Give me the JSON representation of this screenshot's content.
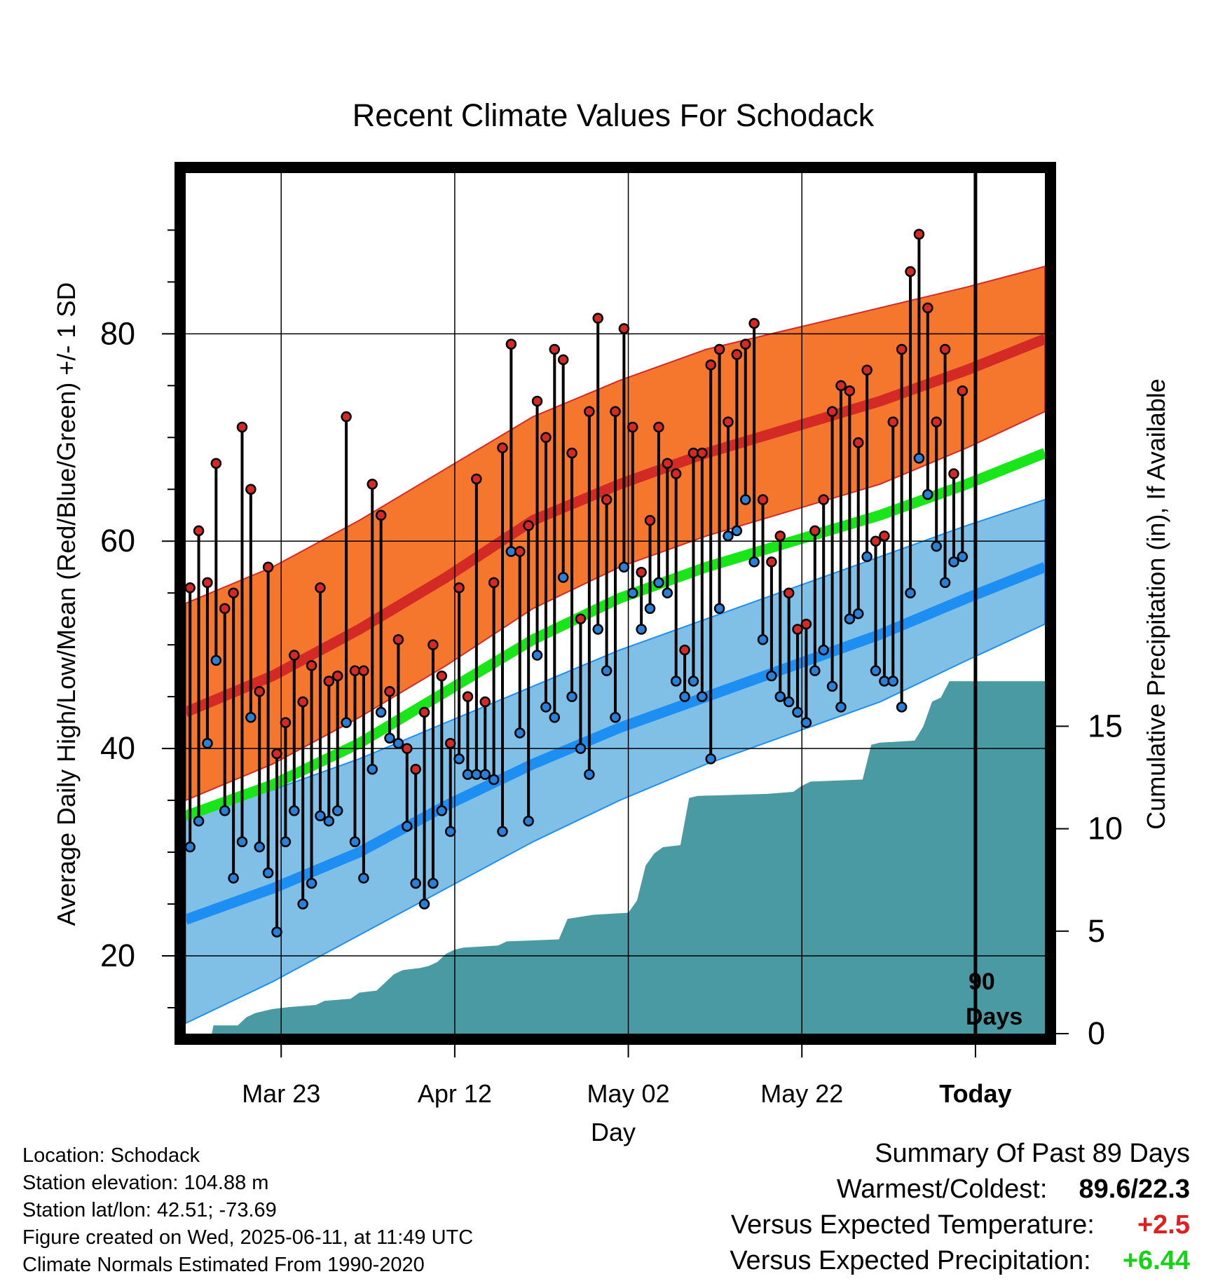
{
  "chart_data": {
    "type": "line",
    "title": "Recent Climate Values For Schodack",
    "xlabel": "Day",
    "ylabel": "Average Daily High/Low/Mean (Red/Blue/Green) +/- 1 SD",
    "y2label": "Cumulative Precipitation (in), If Available",
    "ylim": [
      12.5,
      95.5
    ],
    "y2lim": [
      0,
      42
    ],
    "yticks": [
      20,
      40,
      60,
      80
    ],
    "y2ticks": [
      0,
      5,
      10,
      15
    ],
    "xlim": [
      0,
      99
    ],
    "xticks": [
      {
        "day": 11,
        "label": "Mar 23"
      },
      {
        "day": 31,
        "label": "Apr 12"
      },
      {
        "day": 51,
        "label": "May 02"
      },
      {
        "day": 71,
        "label": "May 22"
      },
      {
        "day": 91,
        "label": "Today"
      }
    ],
    "today_day": 91,
    "window_label_line1": "90",
    "window_label_line2": "Days",
    "normals": {
      "days": [
        0,
        10,
        20,
        30,
        40,
        50,
        60,
        70,
        80,
        90,
        99
      ],
      "high_mean": [
        43.5,
        47.0,
        51.5,
        56.5,
        62.0,
        65.5,
        68.5,
        71.0,
        73.5,
        76.5,
        79.5
      ],
      "high_upper": [
        54.0,
        57.5,
        62.0,
        67.0,
        72.0,
        75.5,
        78.5,
        80.5,
        82.5,
        84.5,
        86.5
      ],
      "high_lower": [
        35.0,
        38.5,
        43.0,
        48.0,
        53.5,
        57.5,
        60.5,
        63.0,
        65.5,
        69.0,
        72.5
      ],
      "mean_mean": [
        33.5,
        36.5,
        40.5,
        45.5,
        50.5,
        54.5,
        57.5,
        60.0,
        62.5,
        65.5,
        68.5
      ],
      "low_mean": [
        23.5,
        26.5,
        30.0,
        34.5,
        38.5,
        42.0,
        45.0,
        48.0,
        51.0,
        54.5,
        57.5
      ],
      "low_upper": [
        34.0,
        36.0,
        39.0,
        42.5,
        46.0,
        49.5,
        52.5,
        55.5,
        58.5,
        61.5,
        64.0
      ],
      "low_lower": [
        13.5,
        17.5,
        22.0,
        26.5,
        31.0,
        35.0,
        38.5,
        41.5,
        44.5,
        48.5,
        52.0
      ]
    },
    "colors": {
      "high_band": "#F4772D",
      "high_line": "#D42A26",
      "low_band": "#80BFE6",
      "low_line": "#1E8FF2",
      "mean_line": "#19E619",
      "precip": "#4A9AA3",
      "high_point": "#D42A26",
      "low_point": "#2A7FD6",
      "up_value": "#E02020",
      "precip_value": "#19D119"
    },
    "daily_high": [
      55.5,
      61.0,
      56.0,
      67.5,
      53.5,
      55.0,
      71.0,
      65.0,
      45.5,
      57.5,
      39.5,
      42.5,
      49.0,
      44.5,
      48.0,
      55.5,
      46.5,
      47.0,
      72.0,
      47.5,
      47.5,
      65.5,
      62.5,
      45.5,
      50.5,
      40.0,
      38.0,
      43.5,
      50.0,
      47.0,
      40.5,
      55.5,
      45.0,
      66.0,
      44.5,
      56.0,
      69.0,
      79.0,
      59.0,
      61.5,
      73.5,
      70.0,
      78.5,
      77.5,
      68.5,
      52.5,
      72.5,
      81.5,
      64.0,
      72.5,
      80.5,
      71.0,
      57.0,
      62.0,
      71.0,
      67.5,
      66.5,
      49.5,
      68.5,
      68.5,
      77.0,
      78.5,
      71.5,
      78.0,
      79.0,
      81.0,
      64.0,
      58.0,
      60.5,
      55.0,
      51.5,
      52.0,
      61.0,
      64.0,
      72.5,
      75.0,
      74.5,
      69.5,
      76.5,
      60.0,
      60.5,
      71.5,
      78.5,
      86.0,
      89.6,
      82.5,
      71.5,
      78.5,
      66.5,
      74.5
    ],
    "daily_low": [
      30.5,
      33.0,
      40.5,
      48.5,
      34.0,
      27.5,
      31.0,
      43.0,
      30.5,
      28.0,
      22.3,
      31.0,
      34.0,
      25.0,
      27.0,
      33.5,
      33.0,
      34.0,
      42.5,
      31.0,
      27.5,
      38.0,
      43.5,
      41.0,
      40.5,
      32.5,
      27.0,
      25.0,
      27.0,
      34.0,
      32.0,
      39.0,
      37.5,
      37.5,
      37.5,
      37.0,
      32.0,
      59.0,
      41.5,
      33.0,
      49.0,
      44.0,
      43.0,
      56.5,
      45.0,
      40.0,
      37.5,
      51.5,
      47.5,
      43.0,
      57.5,
      55.0,
      51.5,
      53.5,
      56.0,
      55.0,
      46.5,
      45.0,
      46.5,
      45.0,
      39.0,
      53.5,
      60.5,
      61.0,
      64.0,
      58.0,
      50.5,
      47.0,
      45.0,
      44.5,
      43.5,
      42.5,
      47.5,
      49.5,
      46.0,
      44.0,
      52.5,
      53.0,
      58.5,
      47.5,
      46.5,
      46.5,
      44.0,
      55.0,
      68.0,
      64.5,
      59.5,
      56.0,
      58.0,
      58.5
    ],
    "precip_cumulative": [
      [
        0,
        0
      ],
      [
        3,
        0
      ],
      [
        3.2,
        0.4
      ],
      [
        6,
        0.4
      ],
      [
        7,
        0.8
      ],
      [
        8,
        1.0
      ],
      [
        9,
        1.1
      ],
      [
        10,
        1.2
      ],
      [
        12,
        1.3
      ],
      [
        15,
        1.4
      ],
      [
        16,
        1.6
      ],
      [
        19,
        1.7
      ],
      [
        20,
        2.0
      ],
      [
        22,
        2.1
      ],
      [
        23,
        2.5
      ],
      [
        24,
        2.9
      ],
      [
        25,
        3.1
      ],
      [
        27,
        3.2
      ],
      [
        28,
        3.3
      ],
      [
        29,
        3.5
      ],
      [
        30,
        3.9
      ],
      [
        31,
        4.1
      ],
      [
        32,
        4.2
      ],
      [
        36,
        4.3
      ],
      [
        37,
        4.5
      ],
      [
        43,
        4.6
      ],
      [
        44,
        5.6
      ],
      [
        47,
        5.8
      ],
      [
        51,
        5.9
      ],
      [
        52,
        6.5
      ],
      [
        53,
        8.2
      ],
      [
        54,
        8.8
      ],
      [
        55,
        9.1
      ],
      [
        57,
        9.2
      ],
      [
        58,
        11.5
      ],
      [
        59,
        11.6
      ],
      [
        67,
        11.7
      ],
      [
        70,
        11.8
      ],
      [
        71,
        12.1
      ],
      [
        72,
        12.3
      ],
      [
        78,
        12.4
      ],
      [
        79,
        14.1
      ],
      [
        80,
        14.2
      ],
      [
        84,
        14.3
      ],
      [
        85,
        15.0
      ],
      [
        86,
        16.2
      ],
      [
        87,
        16.4
      ],
      [
        88,
        17.2
      ],
      [
        91,
        17.2
      ],
      [
        99,
        17.2
      ]
    ]
  },
  "info": {
    "location": "Location: Schodack",
    "elevation": "Station elevation: 104.88 m",
    "latlon": "Station lat/lon: 42.51; -73.69",
    "created": "Figure created on Wed, 2025-06-11, at 11:49 UTC",
    "normals": "Climate Normals Estimated From 1990-2020"
  },
  "summary": {
    "title": "Summary Of Past 89 Days",
    "warm_cold_label": "Warmest/Coldest:",
    "warm_cold_value": "89.6/22.3",
    "temp_label": "Versus Expected Temperature:",
    "temp_value": "+2.5",
    "precip_label": "Versus Expected Precipitation:",
    "precip_value": "+6.44"
  }
}
